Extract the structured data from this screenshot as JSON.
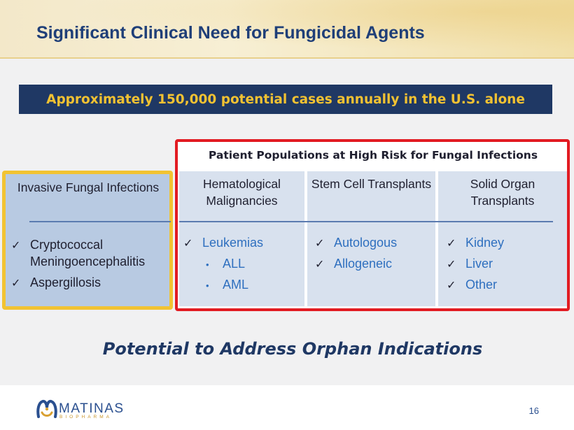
{
  "slide": {
    "title": "Significant Clinical Need for Fungicidal Agents",
    "banner": "Approximately 150,000 potential cases annually in the U.S. alone",
    "left_panel": {
      "heading": "Invasive Fungal Infections",
      "items": [
        "Cryptococcal Meningoencephalitis",
        "Aspergillosis"
      ]
    },
    "populations": {
      "title": "Patient Populations at High Risk for Fungal Infections",
      "columns": [
        {
          "heading": "Hematological Malignancies",
          "items": [
            {
              "text": "Leukemias",
              "level": 1
            },
            {
              "text": "ALL",
              "level": 2
            },
            {
              "text": "AML",
              "level": 2
            }
          ]
        },
        {
          "heading": "Stem Cell Transplants",
          "items": [
            {
              "text": "Autologous",
              "level": 1
            },
            {
              "text": "Allogeneic",
              "level": 1
            }
          ]
        },
        {
          "heading": "Solid Organ Transplants",
          "items": [
            {
              "text": "Kidney",
              "level": 1
            },
            {
              "text": "Liver",
              "level": 1
            },
            {
              "text": "Other",
              "level": 1
            }
          ]
        }
      ]
    },
    "tagline": "Potential to Address Orphan Indications",
    "footer": {
      "logo_name": "MATINAS",
      "logo_sub": "BIOPHARMA",
      "page_number": "16"
    },
    "icons": {
      "check": "check-icon",
      "bullet": "bullet-icon",
      "logo": "matinas-logo-icon"
    },
    "colors": {
      "title": "#1f3f78",
      "banner_bg": "#1f3864",
      "banner_text": "#f2c232",
      "highlight_border": "#e21b22",
      "left_border": "#f2c332",
      "item_text": "#2e6fbf"
    }
  }
}
